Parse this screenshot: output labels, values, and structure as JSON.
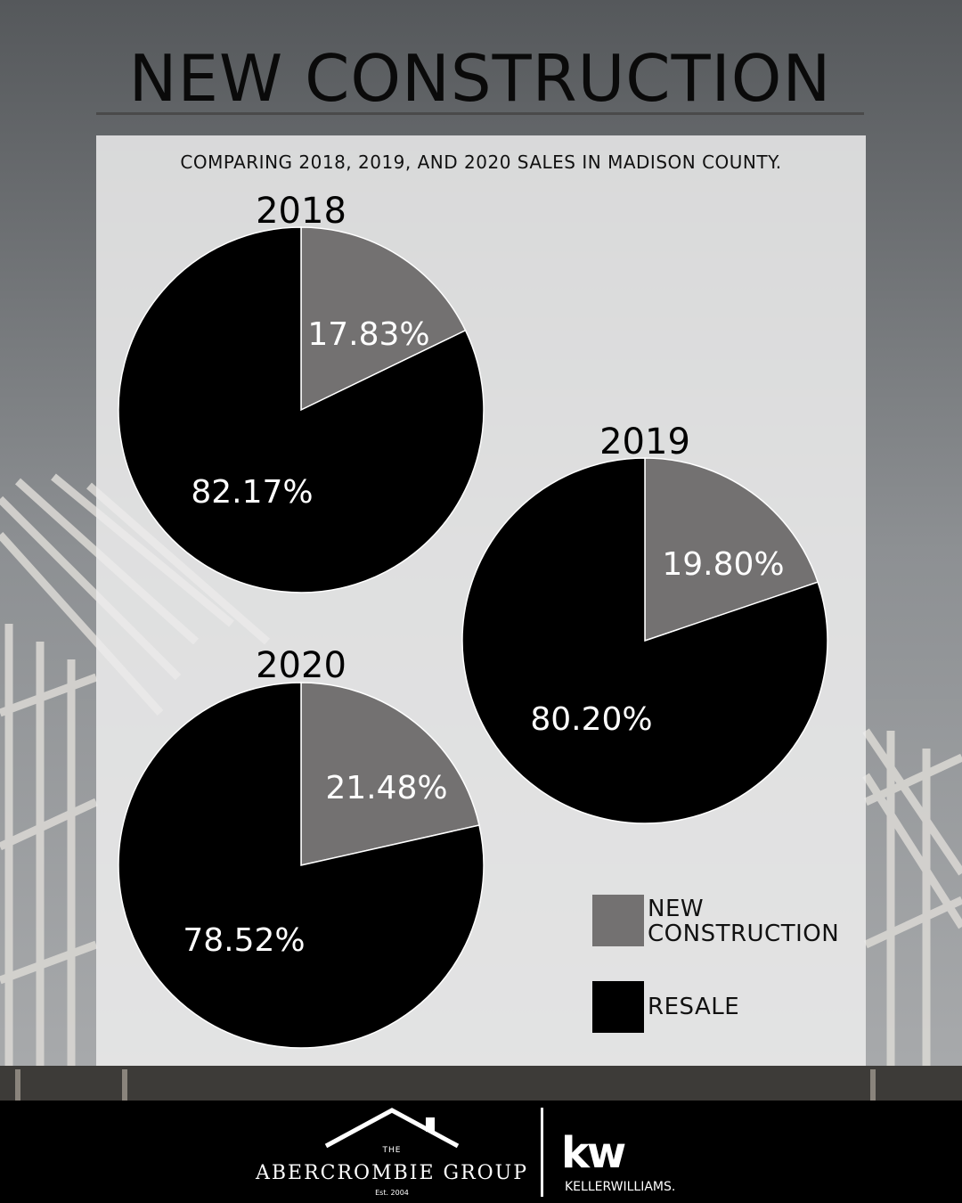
{
  "header": {
    "title": "NEW CONSTRUCTION",
    "subtitle": "COMPARING 2018, 2019, AND 2020 SALES IN MADISON COUNTY."
  },
  "chart_data": [
    {
      "type": "pie",
      "title": "2018",
      "categories": [
        "NEW CONSTRUCTION",
        "RESALE"
      ],
      "values": [
        17.83,
        82.17
      ],
      "labels": [
        "17.83%",
        "82.17%"
      ]
    },
    {
      "type": "pie",
      "title": "2019",
      "categories": [
        "NEW CONSTRUCTION",
        "RESALE"
      ],
      "values": [
        19.8,
        80.2
      ],
      "labels": [
        "19.80%",
        "80.20%"
      ]
    },
    {
      "type": "pie",
      "title": "2020",
      "categories": [
        "NEW CONSTRUCTION",
        "RESALE"
      ],
      "values": [
        21.48,
        78.52
      ],
      "labels": [
        "21.48%",
        "78.52%"
      ]
    }
  ],
  "legend": {
    "new_construction_line1": "NEW",
    "new_construction_line2": "CONSTRUCTION",
    "resale": "RESALE"
  },
  "colors": {
    "new_construction": "#737171",
    "resale": "#000000"
  },
  "footer": {
    "brand_the": "THE",
    "brand_name": "ABERCROMBIE GROUP",
    "brand_est": "Est. 2004",
    "kw_mark": "kw",
    "kw_name": "KELLERWILLIAMS."
  }
}
